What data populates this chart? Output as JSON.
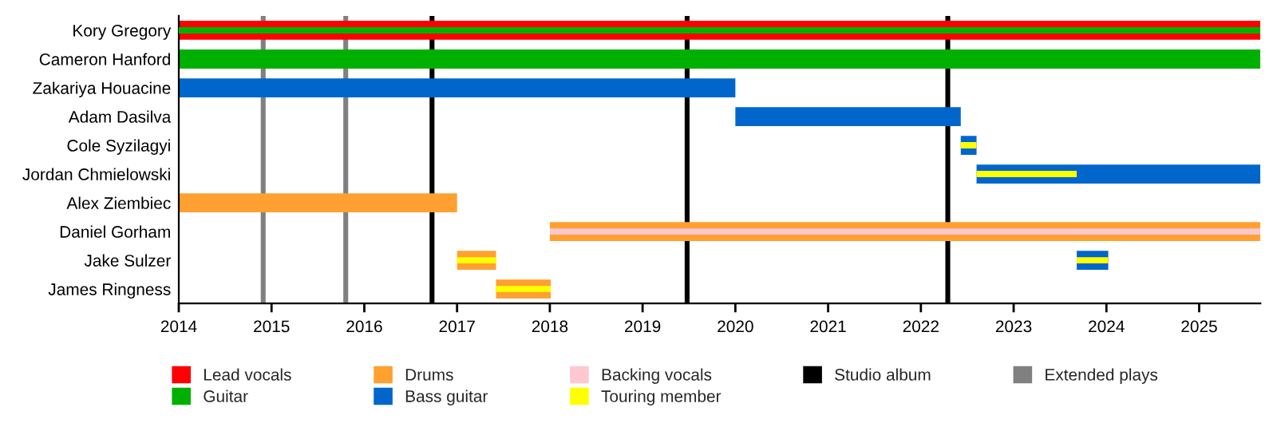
{
  "chart_data": {
    "type": "bar",
    "orientation": "horizontal",
    "categories": [
      "Kory Gregory",
      "Cameron Hanford",
      "Zakariya Houacine",
      "Adam Dasilva",
      "Cole Syzilagyi",
      "Jordan Chmielowski",
      "Alex Ziembiec",
      "Daniel Gorham",
      "Jake Sulzer",
      "James Ringness"
    ],
    "series": [
      {
        "name": "Lead vocals",
        "color": "#ff0000",
        "base": [
          2014,
          null,
          null,
          null,
          null,
          null,
          null,
          null,
          null,
          null
        ],
        "values": [
          11.66,
          null,
          null,
          null,
          null,
          null,
          null,
          null,
          null,
          null
        ]
      },
      {
        "name": "Guitar",
        "color": "#00b000",
        "base": [
          null,
          2014,
          null,
          null,
          null,
          null,
          null,
          null,
          null,
          null
        ],
        "values": [
          null,
          11.66,
          null,
          null,
          null,
          null,
          null,
          null,
          null,
          null
        ]
      },
      {
        "name": "Drums",
        "color": "#ffa030",
        "base": [
          null,
          null,
          null,
          null,
          null,
          null,
          2014,
          2018.0,
          2017.0,
          2017.42
        ],
        "values": [
          null,
          null,
          null,
          null,
          null,
          null,
          3.0,
          7.66,
          0.42,
          0.59
        ]
      },
      {
        "name": "Bass guitar",
        "color": "#0066cc",
        "base": [
          null,
          null,
          2014,
          2020.0,
          2022.43,
          2022.6,
          null,
          null,
          2023.68,
          null
        ],
        "values": [
          null,
          null,
          6.0,
          2.43,
          0.17,
          3.06,
          null,
          null,
          0.34,
          null
        ]
      },
      {
        "name": "Backing vocals",
        "color": "#ffc8d0",
        "base": [
          null,
          null,
          null,
          null,
          null,
          null,
          null,
          2018.0,
          null,
          null
        ],
        "values": [
          null,
          null,
          null,
          null,
          null,
          null,
          null,
          7.66,
          null,
          null
        ]
      },
      {
        "name": "Touring member",
        "color": "#ffff00",
        "base": [
          null,
          null,
          null,
          null,
          2022.43,
          2022.6,
          null,
          null,
          2017.0,
          2017.42
        ],
        "values": [
          null,
          null,
          null,
          null,
          0.17,
          1.08,
          null,
          null,
          0.42,
          0.59
        ]
      },
      {
        "color": "#ffff00",
        "base": [
          null,
          null,
          null,
          null,
          null,
          null,
          null,
          null,
          2023.68,
          null
        ],
        "values": [
          null,
          null,
          null,
          null,
          null,
          null,
          null,
          null,
          0.34,
          null
        ]
      },
      {
        "color": "#00b000",
        "base": [
          2014,
          null,
          null,
          null,
          null,
          null,
          null,
          null,
          null,
          null
        ],
        "values": [
          11.66,
          null,
          null,
          null,
          null,
          null,
          null,
          null,
          null,
          null
        ]
      }
    ],
    "ref_lines": [
      {
        "axis": "x",
        "value": 2016.73,
        "label": "Studio album",
        "color": "#000000"
      },
      {
        "axis": "x",
        "value": 2019.48,
        "color": "#000000"
      },
      {
        "axis": "x",
        "value": 2022.29,
        "color": "#000000"
      },
      {
        "axis": "x",
        "value": 2014.91,
        "label": "Extended plays",
        "color": "#808080"
      },
      {
        "axis": "x",
        "value": 2015.8,
        "color": "#808080"
      }
    ],
    "xlim": [
      2014,
      2025.66
    ],
    "xticks": [
      2014,
      2015,
      2016,
      2017,
      2018,
      2019,
      2020,
      2021,
      2022,
      2023,
      2024,
      2025
    ],
    "grid": false,
    "legend": "bottom"
  }
}
